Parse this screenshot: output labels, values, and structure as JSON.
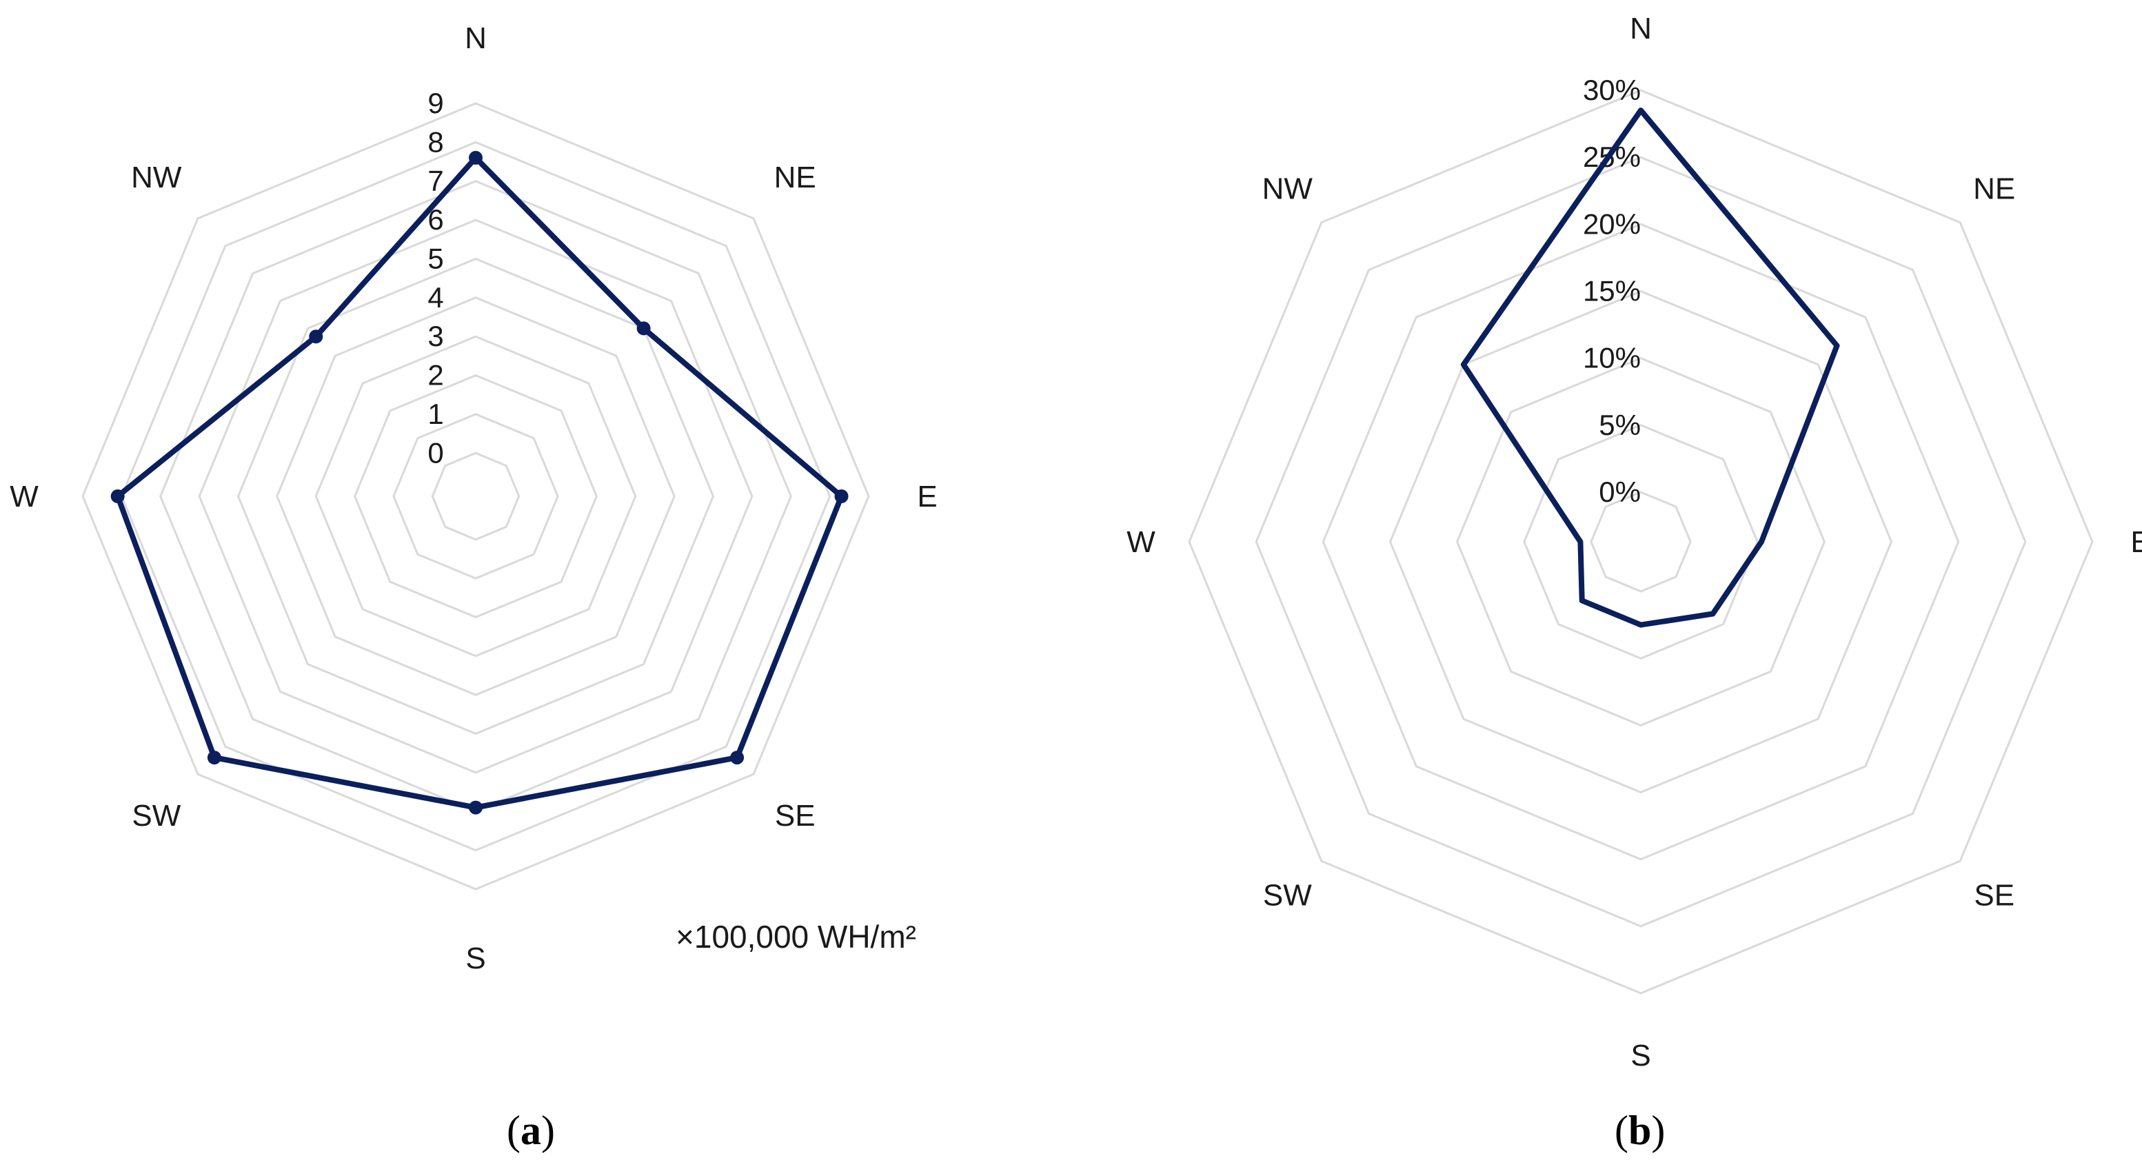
{
  "chart_data": [
    {
      "type": "radar",
      "panel": "a",
      "caption_open": "(",
      "caption_letter": "a",
      "caption_close": ")",
      "categories": [
        "N",
        "NE",
        "E",
        "SE",
        "S",
        "SW",
        "W",
        "NW"
      ],
      "values": [
        7.6,
        5.0,
        8.3,
        8.4,
        6.9,
        8.4,
        8.1,
        4.7
      ],
      "tick_labels": [
        "0",
        "1",
        "2",
        "3",
        "4",
        "5",
        "6",
        "7",
        "8",
        "9"
      ],
      "rlim": [
        0,
        9
      ],
      "unit_label": "×100,000 WH/m²",
      "markers": true,
      "series_color": "#0b1f5c",
      "grid_color": "#d9d9d9"
    },
    {
      "type": "radar",
      "panel": "b",
      "caption_open": "(",
      "caption_letter": "b",
      "caption_close": ")",
      "categories": [
        "N",
        "NE",
        "E",
        "SE",
        "S",
        "SW",
        "W",
        "NW"
      ],
      "values": [
        28.5,
        17.0,
        5.3,
        3.9,
        2.5,
        2.5,
        0.8,
        15.0
      ],
      "tick_labels": [
        "0%",
        "5%",
        "10%",
        "15%",
        "20%",
        "25%",
        "30%"
      ],
      "rlim": [
        0,
        30
      ],
      "markers": false,
      "series_color": "#0b1f5c",
      "grid_color": "#d9d9d9"
    }
  ]
}
